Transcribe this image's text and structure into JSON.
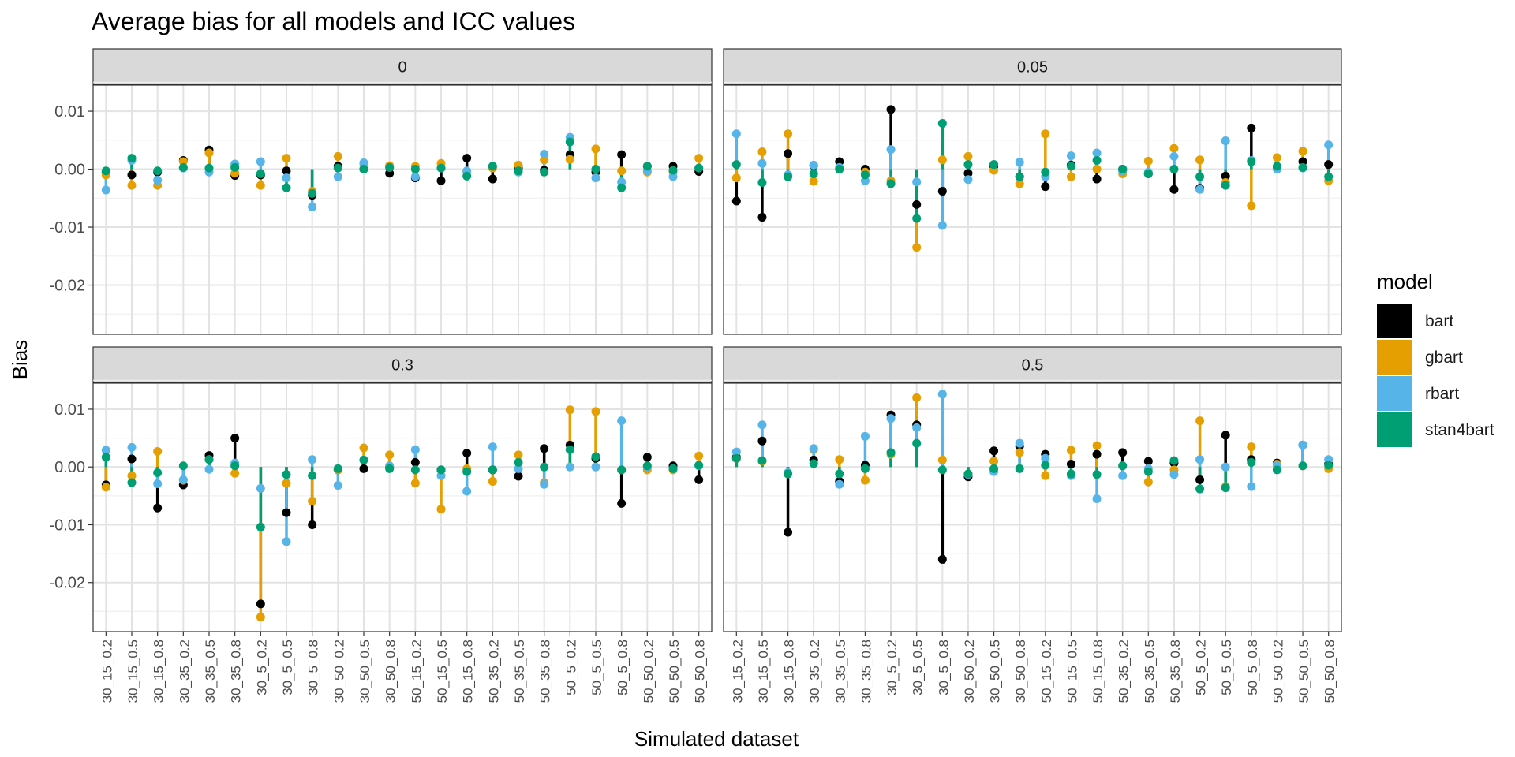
{
  "chart_data": {
    "type": "scatter",
    "title": "Average bias for all models and ICC values",
    "xlabel": "Simulated dataset",
    "ylabel": "Bias",
    "ylim": [
      -0.0285,
      0.0145
    ],
    "yticks": [
      0.01,
      0.0,
      -0.01,
      -0.02
    ],
    "ytick_labels": [
      "0.01",
      "0.00",
      "-0.01",
      "-0.02"
    ],
    "grid": true,
    "legend": {
      "title": "model",
      "position": "right"
    },
    "categories": [
      "30_15_0.2",
      "30_15_0.5",
      "30_15_0.8",
      "30_35_0.2",
      "30_35_0.5",
      "30_35_0.8",
      "30_5_0.2",
      "30_5_0.5",
      "30_5_0.8",
      "30_50_0.2",
      "30_50_0.5",
      "30_50_0.8",
      "50_15_0.2",
      "50_15_0.5",
      "50_15_0.8",
      "50_35_0.2",
      "50_35_0.5",
      "50_35_0.8",
      "50_5_0.2",
      "50_5_0.5",
      "50_5_0.8",
      "50_50_0.2",
      "50_50_0.5",
      "50_50_0.8"
    ],
    "models": [
      {
        "name": "bart",
        "color": "#000000"
      },
      {
        "name": "gbart",
        "color": "#E69F00"
      },
      {
        "name": "rbart",
        "color": "#56B4E9"
      },
      {
        "name": "stan4bart",
        "color": "#009E73"
      }
    ],
    "facets": [
      {
        "label": "0",
        "series": [
          {
            "name": "bart",
            "values": [
              -0.0005,
              -0.001,
              -0.0005,
              0.0015,
              0.0033,
              -0.0011,
              -0.001,
              -0.0003,
              -0.0045,
              0.0005,
              0.0,
              -0.0007,
              -0.0015,
              -0.002,
              0.0019,
              -0.0017,
              0.0002,
              -0.0002,
              0.0025,
              -0.0005,
              0.0025,
              0.0005,
              0.0005,
              -0.0004
            ]
          },
          {
            "name": "gbart",
            "values": [
              -0.001,
              -0.0028,
              -0.0028,
              0.0013,
              0.0028,
              -0.0007,
              -0.0028,
              0.0019,
              -0.0038,
              0.0022,
              0.0009,
              0.0006,
              0.0005,
              0.001,
              -0.0005,
              0.0002,
              0.0007,
              0.0016,
              0.0017,
              0.0035,
              -0.0003,
              -0.0005,
              -0.0005,
              0.0019
            ]
          },
          {
            "name": "rbart",
            "values": [
              -0.0036,
              0.0015,
              -0.0019,
              0.0002,
              -0.0005,
              0.0009,
              0.0013,
              -0.0015,
              -0.0065,
              -0.0013,
              0.0011,
              0.0003,
              -0.0013,
              0.0002,
              -0.0003,
              0.0005,
              -0.0005,
              0.0026,
              0.0055,
              -0.0015,
              -0.0022,
              -0.0003,
              -0.0013,
              0.0002
            ]
          },
          {
            "name": "stan4bart",
            "values": [
              -0.0003,
              0.0019,
              -0.0003,
              0.0003,
              0.0002,
              0.0003,
              -0.0008,
              -0.0032,
              -0.0042,
              0.0002,
              0.0,
              0.0003,
              0.0,
              0.0002,
              -0.0012,
              0.0005,
              -0.0003,
              -0.0005,
              0.0047,
              0.0,
              -0.0032,
              0.0005,
              -0.0002,
              0.0002
            ]
          }
        ]
      },
      {
        "label": "0.05",
        "series": [
          {
            "name": "bart",
            "values": [
              -0.0055,
              -0.0083,
              0.0027,
              0.0006,
              0.0013,
              0.0,
              0.0103,
              -0.0061,
              -0.0038,
              -0.0007,
              0.0005,
              -0.0013,
              -0.003,
              0.0007,
              -0.0017,
              0.0,
              -0.0008,
              -0.0035,
              -0.0033,
              -0.0012,
              0.0071,
              0.0002,
              0.0013,
              0.0008
            ]
          },
          {
            "name": "gbart",
            "values": [
              -0.0015,
              0.003,
              0.0061,
              -0.0021,
              0.0,
              -0.0005,
              -0.002,
              -0.0135,
              0.0016,
              0.0022,
              -0.0002,
              -0.0025,
              0.0061,
              -0.0013,
              0.0,
              -0.0008,
              0.0014,
              0.0036,
              0.0016,
              -0.0023,
              -0.0063,
              0.002,
              0.0031,
              -0.002
            ]
          },
          {
            "name": "rbart",
            "values": [
              0.0061,
              0.001,
              -0.001,
              0.0007,
              0.0003,
              -0.002,
              0.0034,
              -0.0022,
              -0.0097,
              -0.0018,
              0.0008,
              0.0012,
              -0.0013,
              0.0023,
              0.0028,
              -0.0003,
              -0.0005,
              0.0022,
              -0.0035,
              0.0049,
              0.0015,
              0.0,
              0.0002,
              0.0042
            ]
          },
          {
            "name": "stan4bart",
            "values": [
              0.0008,
              -0.0023,
              -0.0013,
              -0.0008,
              0.0,
              -0.001,
              -0.0025,
              -0.0085,
              0.0079,
              0.0008,
              0.0008,
              -0.0013,
              -0.0005,
              0.0005,
              0.0015,
              0.0,
              -0.0008,
              0.0,
              -0.0013,
              -0.0028,
              0.0013,
              0.0005,
              0.0003,
              -0.0013
            ]
          }
        ]
      },
      {
        "label": "0.3",
        "series": [
          {
            "name": "bart",
            "values": [
              -0.0031,
              0.0014,
              -0.0071,
              -0.0031,
              0.002,
              0.005,
              -0.0237,
              -0.0079,
              -0.01,
              -0.0005,
              -0.0003,
              0.0,
              0.0008,
              -0.0005,
              0.0024,
              -0.0005,
              -0.0016,
              0.0032,
              0.0038,
              0.0015,
              -0.0063,
              0.0017,
              0.0002,
              -0.0022
            ]
          },
          {
            "name": "gbart",
            "values": [
              -0.0035,
              -0.0015,
              0.0027,
              -0.0023,
              0.0013,
              -0.0011,
              -0.026,
              -0.0028,
              -0.0059,
              -0.0005,
              0.0033,
              0.0021,
              -0.0028,
              -0.0073,
              -0.0003,
              -0.0025,
              0.0021,
              -0.0027,
              0.0099,
              0.0096,
              -0.0005,
              -0.0005,
              -0.0005,
              0.0019
            ]
          },
          {
            "name": "rbart",
            "values": [
              0.0029,
              0.0034,
              -0.0029,
              -0.0022,
              -0.0004,
              0.0007,
              -0.0037,
              -0.0129,
              0.0013,
              -0.0032,
              0.0012,
              0.0002,
              0.003,
              -0.0015,
              -0.0042,
              0.0035,
              -0.0003,
              -0.003,
              0.0,
              0.0,
              0.008,
              0.0,
              -0.0003,
              0.0002
            ]
          },
          {
            "name": "stan4bart",
            "values": [
              0.0017,
              -0.0027,
              -0.001,
              0.0002,
              0.0013,
              0.0002,
              -0.0104,
              -0.0013,
              -0.0015,
              -0.0003,
              0.0012,
              -0.0003,
              -0.0005,
              -0.0005,
              -0.0008,
              -0.0005,
              0.0008,
              0.0,
              0.003,
              0.0018,
              -0.0005,
              0.0002,
              -0.0003,
              0.0003
            ]
          }
        ]
      },
      {
        "label": "0.5",
        "series": [
          {
            "name": "bart",
            "values": [
              0.0017,
              0.0045,
              -0.0113,
              0.0012,
              -0.0025,
              0.0003,
              0.009,
              0.0073,
              -0.016,
              -0.0017,
              0.0028,
              0.0036,
              0.0022,
              0.0005,
              0.0022,
              0.0025,
              0.001,
              0.0007,
              -0.0022,
              0.0055,
              0.0013,
              0.0007,
              0.0038,
              0.0005
            ]
          },
          {
            "name": "gbart",
            "values": [
              0.0015,
              0.001,
              -0.0012,
              0.003,
              0.0013,
              -0.0023,
              0.0022,
              0.012,
              0.0012,
              -0.0012,
              0.001,
              0.0025,
              -0.0015,
              0.0029,
              0.0037,
              0.0002,
              -0.0026,
              -0.0005,
              0.008,
              -0.0034,
              0.0035,
              0.0005,
              0.0002,
              -0.0003
            ]
          },
          {
            "name": "rbart",
            "values": [
              0.0026,
              0.0073,
              -0.001,
              0.0032,
              -0.003,
              0.0053,
              0.0084,
              0.0068,
              0.0126,
              -0.0013,
              -0.0008,
              0.0041,
              0.0015,
              -0.0015,
              -0.0055,
              -0.0015,
              -0.0003,
              -0.0013,
              0.0013,
              0.0,
              -0.0034,
              0.0002,
              0.0038,
              0.0013
            ]
          },
          {
            "name": "stan4bart",
            "values": [
              0.0015,
              0.0011,
              -0.0012,
              0.0006,
              -0.0012,
              -0.0003,
              0.0025,
              0.0041,
              -0.0005,
              -0.0012,
              -0.0003,
              -0.0003,
              0.0003,
              -0.0012,
              -0.0013,
              0.0002,
              -0.0008,
              0.0011,
              -0.0038,
              -0.0036,
              0.0008,
              -0.0005,
              0.0002,
              0.0003
            ]
          }
        ]
      }
    ]
  }
}
